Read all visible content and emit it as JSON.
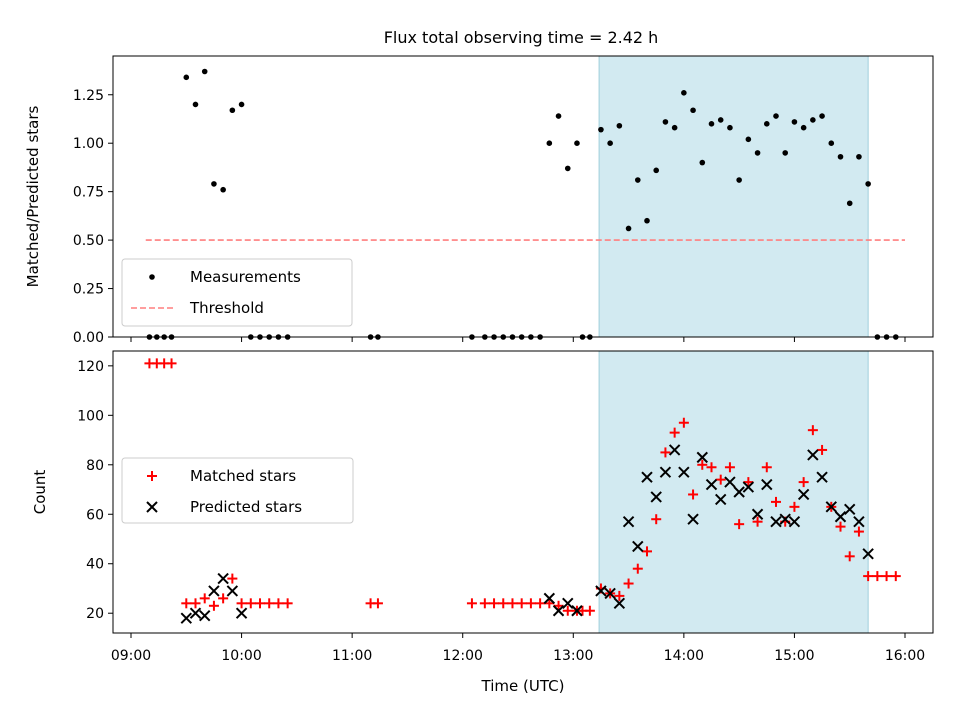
{
  "figure": {
    "title": "Flux total observing time = 2.42 h"
  },
  "colors": {
    "measurements": "#000000",
    "threshold": "#ff7f7f",
    "matched": "#ff0000",
    "predicted": "#000000",
    "span": "#add8e6"
  },
  "chart_data": [
    {
      "type": "scatter",
      "title": "Flux total observing time = 2.42 h",
      "xlabel": "",
      "ylabel": "Matched/Predicted stars",
      "xlim": [
        "09:00",
        "16:00"
      ],
      "ylim": [
        0,
        1.45
      ],
      "x_ticks": [
        "09:00",
        "10:00",
        "11:00",
        "12:00",
        "13:00",
        "14:00",
        "15:00",
        "16:00"
      ],
      "y_ticks": [
        "0.00",
        "0.25",
        "0.50",
        "0.75",
        "1.00",
        "1.25"
      ],
      "shaded_span": [
        "13:14",
        "15:40"
      ],
      "legend": {
        "placement": "lower-left",
        "entries": [
          "Measurements",
          "Threshold"
        ]
      },
      "series": [
        {
          "name": "Measurements",
          "marker": "dot",
          "points": [
            [
              "09:10",
              0
            ],
            [
              "09:14",
              0
            ],
            [
              "09:18",
              0
            ],
            [
              "09:22",
              0
            ],
            [
              "09:30",
              1.34
            ],
            [
              "09:35",
              1.2
            ],
            [
              "09:40",
              1.37
            ],
            [
              "09:45",
              0.79
            ],
            [
              "09:50",
              0.76
            ],
            [
              "09:55",
              1.17
            ],
            [
              "10:00",
              1.2
            ],
            [
              "10:05",
              0
            ],
            [
              "10:10",
              0
            ],
            [
              "10:15",
              0
            ],
            [
              "10:20",
              0
            ],
            [
              "10:25",
              0
            ],
            [
              "11:10",
              0
            ],
            [
              "11:14",
              0
            ],
            [
              "12:05",
              0
            ],
            [
              "12:12",
              0
            ],
            [
              "12:17",
              0
            ],
            [
              "12:22",
              0
            ],
            [
              "12:27",
              0
            ],
            [
              "12:32",
              0
            ],
            [
              "12:37",
              0
            ],
            [
              "12:42",
              0
            ],
            [
              "12:47",
              1.0
            ],
            [
              "12:52",
              1.14
            ],
            [
              "12:57",
              0.87
            ],
            [
              "13:02",
              1.0
            ],
            [
              "13:05",
              0
            ],
            [
              "13:09",
              0
            ],
            [
              "13:15",
              1.07
            ],
            [
              "13:20",
              1.0
            ],
            [
              "13:25",
              1.09
            ],
            [
              "13:30",
              0.56
            ],
            [
              "13:35",
              0.81
            ],
            [
              "13:40",
              0.6
            ],
            [
              "13:45",
              0.86
            ],
            [
              "13:50",
              1.11
            ],
            [
              "13:55",
              1.08
            ],
            [
              "14:00",
              1.26
            ],
            [
              "14:05",
              1.17
            ],
            [
              "14:10",
              0.9
            ],
            [
              "14:15",
              1.1
            ],
            [
              "14:20",
              1.12
            ],
            [
              "14:25",
              1.08
            ],
            [
              "14:30",
              0.81
            ],
            [
              "14:35",
              1.02
            ],
            [
              "14:40",
              0.95
            ],
            [
              "14:45",
              1.1
            ],
            [
              "14:50",
              1.14
            ],
            [
              "14:55",
              0.95
            ],
            [
              "15:00",
              1.11
            ],
            [
              "15:05",
              1.08
            ],
            [
              "15:10",
              1.12
            ],
            [
              "15:15",
              1.14
            ],
            [
              "15:20",
              1.0
            ],
            [
              "15:25",
              0.93
            ],
            [
              "15:30",
              0.69
            ],
            [
              "15:35",
              0.93
            ],
            [
              "15:40",
              0.79
            ],
            [
              "15:45",
              0
            ],
            [
              "15:50",
              0
            ],
            [
              "15:55",
              0
            ]
          ]
        },
        {
          "name": "Threshold",
          "style": "dashed",
          "points": [
            [
              "09:08",
              0.5
            ],
            [
              "16:00",
              0.5
            ]
          ]
        }
      ]
    },
    {
      "type": "scatter",
      "xlabel": "Time (UTC)",
      "ylabel": "Count",
      "xlim": [
        "09:00",
        "16:00"
      ],
      "ylim": [
        12,
        126
      ],
      "x_ticks": [
        "09:00",
        "10:00",
        "11:00",
        "12:00",
        "13:00",
        "14:00",
        "15:00",
        "16:00"
      ],
      "y_ticks": [
        "20",
        "40",
        "60",
        "80",
        "100",
        "120"
      ],
      "shaded_span": [
        "13:14",
        "15:40"
      ],
      "legend": {
        "placement": "center-left",
        "entries": [
          "Matched stars",
          "Predicted stars"
        ]
      },
      "series": [
        {
          "name": "Matched stars",
          "marker": "plus",
          "points": [
            [
              "09:10",
              121
            ],
            [
              "09:14",
              121
            ],
            [
              "09:18",
              121
            ],
            [
              "09:22",
              121
            ],
            [
              "09:30",
              24
            ],
            [
              "09:35",
              24
            ],
            [
              "09:40",
              26
            ],
            [
              "09:45",
              23
            ],
            [
              "09:50",
              26
            ],
            [
              "09:55",
              34
            ],
            [
              "10:00",
              24
            ],
            [
              "10:05",
              24
            ],
            [
              "10:10",
              24
            ],
            [
              "10:15",
              24
            ],
            [
              "10:20",
              24
            ],
            [
              "10:25",
              24
            ],
            [
              "11:10",
              24
            ],
            [
              "11:14",
              24
            ],
            [
              "12:05",
              24
            ],
            [
              "12:12",
              24
            ],
            [
              "12:17",
              24
            ],
            [
              "12:22",
              24
            ],
            [
              "12:27",
              24
            ],
            [
              "12:32",
              24
            ],
            [
              "12:37",
              24
            ],
            [
              "12:42",
              24
            ],
            [
              "12:47",
              24
            ],
            [
              "12:52",
              23
            ],
            [
              "12:57",
              21
            ],
            [
              "13:02",
              21
            ],
            [
              "13:05",
              21
            ],
            [
              "13:09",
              21
            ],
            [
              "13:15",
              30
            ],
            [
              "13:20",
              28
            ],
            [
              "13:25",
              27
            ],
            [
              "13:30",
              32
            ],
            [
              "13:35",
              38
            ],
            [
              "13:40",
              45
            ],
            [
              "13:45",
              58
            ],
            [
              "13:50",
              85
            ],
            [
              "13:55",
              93
            ],
            [
              "14:00",
              97
            ],
            [
              "14:05",
              68
            ],
            [
              "14:10",
              80
            ],
            [
              "14:15",
              79
            ],
            [
              "14:20",
              74
            ],
            [
              "14:25",
              79
            ],
            [
              "14:30",
              56
            ],
            [
              "14:35",
              73
            ],
            [
              "14:40",
              57
            ],
            [
              "14:45",
              79
            ],
            [
              "14:50",
              65
            ],
            [
              "14:55",
              57
            ],
            [
              "15:00",
              63
            ],
            [
              "15:05",
              73
            ],
            [
              "15:10",
              94
            ],
            [
              "15:15",
              86
            ],
            [
              "15:20",
              63
            ],
            [
              "15:25",
              55
            ],
            [
              "15:30",
              43
            ],
            [
              "15:35",
              53
            ],
            [
              "15:40",
              35
            ],
            [
              "15:45",
              35
            ],
            [
              "15:50",
              35
            ],
            [
              "15:55",
              35
            ]
          ]
        },
        {
          "name": "Predicted stars",
          "marker": "cross",
          "points": [
            [
              "09:30",
              18
            ],
            [
              "09:35",
              20
            ],
            [
              "09:40",
              19
            ],
            [
              "09:45",
              29
            ],
            [
              "09:50",
              34
            ],
            [
              "09:55",
              29
            ],
            [
              "10:00",
              20
            ],
            [
              "12:47",
              26
            ],
            [
              "12:52",
              21
            ],
            [
              "12:57",
              24
            ],
            [
              "13:02",
              21
            ],
            [
              "13:15",
              29
            ],
            [
              "13:20",
              28
            ],
            [
              "13:25",
              24
            ],
            [
              "13:30",
              57
            ],
            [
              "13:35",
              47
            ],
            [
              "13:40",
              75
            ],
            [
              "13:45",
              67
            ],
            [
              "13:50",
              77
            ],
            [
              "13:55",
              86
            ],
            [
              "14:00",
              77
            ],
            [
              "14:05",
              58
            ],
            [
              "14:10",
              83
            ],
            [
              "14:15",
              72
            ],
            [
              "14:20",
              66
            ],
            [
              "14:25",
              73
            ],
            [
              "14:30",
              69
            ],
            [
              "14:35",
              71
            ],
            [
              "14:40",
              60
            ],
            [
              "14:45",
              72
            ],
            [
              "14:50",
              57
            ],
            [
              "14:55",
              58
            ],
            [
              "15:00",
              57
            ],
            [
              "15:05",
              68
            ],
            [
              "15:10",
              84
            ],
            [
              "15:15",
              75
            ],
            [
              "15:20",
              63
            ],
            [
              "15:25",
              59
            ],
            [
              "15:30",
              62
            ],
            [
              "15:35",
              57
            ],
            [
              "15:40",
              44
            ]
          ]
        }
      ]
    }
  ]
}
